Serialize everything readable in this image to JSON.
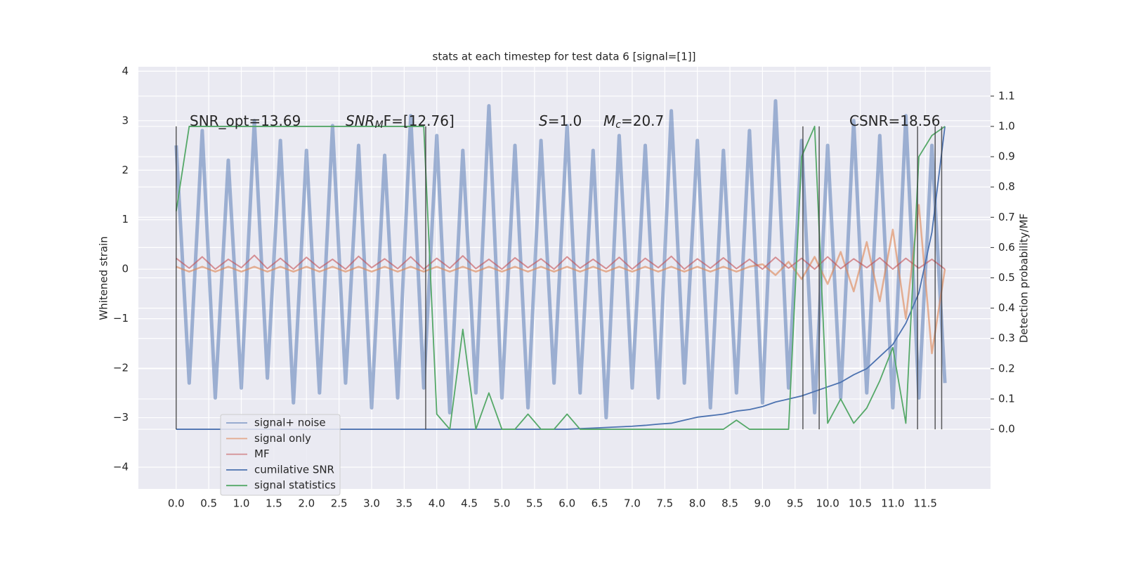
{
  "chart_data": {
    "type": "line",
    "title": "stats at each timestep for test data 6 [signal=[1]]",
    "ylabel": "Whitened strain",
    "y2label": "Detection probability/MF",
    "grid": true,
    "legend": "lower left",
    "xlim": [
      -0.58,
      12.5
    ],
    "ylim": [
      -4.44,
      4.09
    ],
    "y2lim": [
      -0.197,
      1.197
    ],
    "xticks": [
      {
        "value": 0,
        "label": "0.0"
      },
      0.5,
      {
        "value": 1,
        "label": "1.0"
      },
      1.5,
      {
        "value": 2,
        "label": "2.0"
      },
      2.5,
      {
        "value": 3,
        "label": "3.0"
      },
      3.5,
      {
        "value": 4,
        "label": "4.0"
      },
      4.5,
      {
        "value": 5,
        "label": "5.0"
      },
      5.5,
      {
        "value": 6,
        "label": "6.0"
      },
      6.5,
      {
        "value": 7,
        "label": "7.0"
      },
      7.5,
      {
        "value": 8,
        "label": "8.0"
      },
      8.5,
      {
        "value": 9,
        "label": "9.0"
      },
      9.5,
      {
        "value": 10,
        "label": "10.0"
      },
      10.5,
      {
        "value": 11,
        "label": "11.0"
      },
      11.5
    ],
    "yticks": [
      {
        "value": -4,
        "label": "−4"
      },
      {
        "value": -3,
        "label": "−3"
      },
      {
        "value": -2,
        "label": "−2"
      },
      {
        "value": -1,
        "label": "−1"
      },
      0,
      1,
      2,
      3,
      4
    ],
    "y2ticks": [
      {
        "value": 0,
        "label": "0.0"
      },
      0.1,
      0.2,
      0.3,
      0.4,
      0.5,
      0.6,
      0.7,
      0.8,
      0.9,
      {
        "value": 1,
        "label": "1.0"
      },
      1.1
    ],
    "x": [
      0,
      0.2,
      0.4,
      0.6,
      0.8,
      1,
      1.2,
      1.4,
      1.6,
      1.8,
      2,
      2.2,
      2.4,
      2.6,
      2.8,
      3,
      3.2,
      3.4,
      3.6,
      3.8,
      4,
      4.2,
      4.4,
      4.6,
      4.8,
      5,
      5.2,
      5.4,
      5.6,
      5.8,
      6,
      6.2,
      6.4,
      6.6,
      6.8,
      7,
      7.2,
      7.4,
      7.6,
      7.8,
      8,
      8.2,
      8.4,
      8.6,
      8.8,
      9,
      9.2,
      9.4,
      9.6,
      9.8,
      10,
      10.2,
      10.4,
      10.6,
      10.8,
      11,
      11.2,
      11.4,
      11.6,
      11.8
    ],
    "series": [
      {
        "name": "signal+ noise",
        "color": "#4c72b0",
        "values": [
          2.5,
          -2.3,
          2.8,
          -2.6,
          2.2,
          -2.4,
          3.0,
          -2.2,
          2.6,
          -2.7,
          2.4,
          -2.5,
          2.9,
          -2.3,
          2.5,
          -2.8,
          2.3,
          -2.6,
          3.1,
          -2.4,
          2.7,
          -2.9,
          2.4,
          -2.5,
          3.3,
          -2.6,
          2.5,
          -2.8,
          2.6,
          -2.3,
          2.9,
          -2.5,
          2.4,
          -3.0,
          2.7,
          -2.4,
          2.5,
          -2.6,
          3.2,
          -2.3,
          2.6,
          -2.8,
          2.4,
          -2.5,
          2.8,
          -2.7,
          3.4,
          -2.4,
          2.6,
          -2.9,
          2.5,
          -2.6,
          3.0,
          -2.5,
          2.7,
          -2.8,
          3.1,
          -2.6,
          2.5,
          -2.3
        ]
      },
      {
        "name": "signal only",
        "color": "#dd8452",
        "values": [
          0.05,
          -0.05,
          0.05,
          -0.05,
          0.05,
          -0.05,
          0.05,
          -0.05,
          0.05,
          -0.05,
          0.05,
          -0.05,
          0.05,
          -0.05,
          0.05,
          -0.05,
          0.05,
          -0.05,
          0.05,
          -0.05,
          0.05,
          -0.05,
          0.05,
          -0.05,
          0.05,
          -0.05,
          0.05,
          -0.05,
          0.05,
          -0.05,
          0.05,
          -0.05,
          0.05,
          -0.05,
          0.05,
          -0.05,
          0.05,
          -0.05,
          0.05,
          -0.05,
          0.05,
          -0.05,
          0.05,
          -0.05,
          0.05,
          0.1,
          -0.12,
          0.15,
          -0.2,
          0.25,
          -0.3,
          0.35,
          -0.45,
          0.55,
          -0.65,
          0.8,
          -1.0,
          1.3,
          -1.7,
          0.0
        ]
      },
      {
        "name": "MF",
        "color": "#c44e52",
        "values": [
          0.22,
          0.02,
          0.25,
          0.0,
          0.2,
          0.03,
          0.28,
          0.01,
          0.22,
          0.0,
          0.24,
          0.02,
          0.2,
          0.0,
          0.26,
          0.03,
          0.21,
          0.01,
          0.25,
          0.0,
          0.22,
          0.02,
          0.27,
          0.01,
          0.2,
          0.0,
          0.23,
          0.03,
          0.21,
          0.0,
          0.25,
          0.02,
          0.2,
          0.01,
          0.24,
          0.0,
          0.22,
          0.03,
          0.26,
          0.0,
          0.21,
          0.02,
          0.23,
          0.01,
          0.2,
          0.0,
          0.24,
          0.02,
          0.22,
          0.0,
          0.25,
          0.01,
          0.21,
          0.03,
          0.23,
          0.0,
          0.22,
          0.02,
          0.2,
          0.0
        ]
      },
      {
        "name": "cumilative SNR",
        "color": "#4c72b0",
        "axis": "y2",
        "values": [
          0,
          0,
          0,
          0,
          0,
          0,
          0,
          0,
          0,
          0,
          0,
          0,
          0,
          0,
          0,
          0,
          0,
          0,
          0,
          0,
          0,
          0,
          0,
          0,
          0,
          0,
          0,
          0,
          0,
          0,
          0,
          0.002,
          0.004,
          0.006,
          0.008,
          0.01,
          0.013,
          0.017,
          0.02,
          0.03,
          0.04,
          0.045,
          0.05,
          0.06,
          0.065,
          0.075,
          0.09,
          0.1,
          0.11,
          0.125,
          0.14,
          0.155,
          0.18,
          0.2,
          0.24,
          0.28,
          0.35,
          0.45,
          0.65,
          1.0
        ]
      },
      {
        "name": "signal statistics",
        "color": "#55a868",
        "axis": "y2",
        "values": [
          0.72,
          1.0,
          1.0,
          1.0,
          1.0,
          1.0,
          1.0,
          1.0,
          1.0,
          1.0,
          1.0,
          1.0,
          1.0,
          1.0,
          1.0,
          1.0,
          1.0,
          1.0,
          1.0,
          1.0,
          0.05,
          0.0,
          0.33,
          0.0,
          0.12,
          0.0,
          0.0,
          0.05,
          0.0,
          0.0,
          0.05,
          0.0,
          0.0,
          0.0,
          0.0,
          0.0,
          0.0,
          0.0,
          0.0,
          0.0,
          0.0,
          0.0,
          0.0,
          0.03,
          0.0,
          0.0,
          0.0,
          0.0,
          0.9,
          1.0,
          0.02,
          0.1,
          0.02,
          0.07,
          0.16,
          0.27,
          0.02,
          0.9,
          0.97,
          1.0
        ]
      }
    ],
    "vlines": {
      "x": [
        0.0,
        3.83,
        9.62,
        9.87,
        11.38,
        11.65,
        11.75
      ],
      "ymin": 0,
      "ymax": 1.0,
      "color": "#333333"
    },
    "annotations": [
      {
        "text": "SNR_opt=13.69"
      },
      {
        "text": "SNR",
        "sub": "M",
        "tail": "F=[12.76]"
      },
      {
        "text": "S",
        "tail": "=1.0"
      },
      {
        "text": "M",
        "sub": "c",
        "tail": "=20.7"
      },
      {
        "text": "CSNR=18.56"
      }
    ]
  }
}
